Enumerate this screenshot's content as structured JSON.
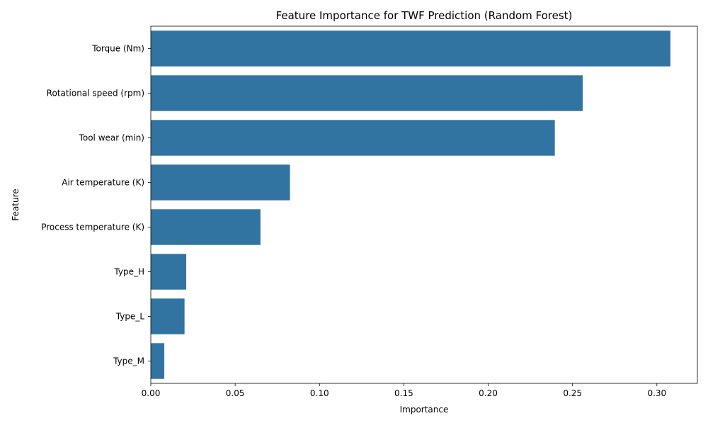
{
  "chart_data": {
    "type": "bar",
    "orientation": "horizontal",
    "title": "Feature Importance for TWF Prediction (Random Forest)",
    "xlabel": "Importance",
    "ylabel": "Feature",
    "categories": [
      "Torque (Nm)",
      "Rotational speed (rpm)",
      "Tool wear (min)",
      "Air temperature (K)",
      "Process temperature (K)",
      "Type_H",
      "Type_L",
      "Type_M"
    ],
    "values": [
      0.308,
      0.256,
      0.2395,
      0.0825,
      0.065,
      0.021,
      0.02,
      0.008
    ],
    "xlim": [
      0,
      0.324
    ],
    "xticks": [
      0.0,
      0.05,
      0.1,
      0.15,
      0.2,
      0.25,
      0.3
    ],
    "xtick_labels": [
      "0.00",
      "0.05",
      "0.10",
      "0.15",
      "0.20",
      "0.25",
      "0.30"
    ],
    "bar_color": "#3274a1",
    "grid": false,
    "legend": false
  }
}
